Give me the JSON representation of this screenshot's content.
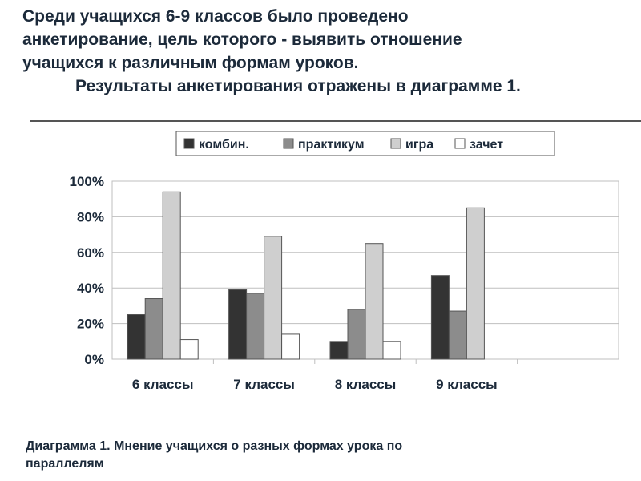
{
  "header": {
    "line1": "Среди учащихся 6-9 классов было проведено",
    "line2": "анкетирование, цель которого - выявить отношение",
    "line3": "учащихся к различным формам уроков.",
    "line4": "Результаты анкетирования отражены в диаграмме 1."
  },
  "caption": {
    "line1": "Диаграмма 1. Мнение учащихся о разных формах урока по",
    "line2": "параллелям"
  },
  "colors": {
    "комбин.": "#333333",
    "практикум": "#8c8c8c",
    "игра": "#cfcfcf",
    "зачет": "#ffffff",
    "grid": "#bfbfbf",
    "text": "#1c2a3a"
  },
  "chart_data": {
    "type": "bar",
    "categories": [
      "6 классы",
      "7 классы",
      "8 классы",
      "9 классы"
    ],
    "series": [
      {
        "name": "комбин.",
        "values": [
          25,
          39,
          10,
          47
        ]
      },
      {
        "name": "практикум",
        "values": [
          34,
          37,
          28,
          27
        ]
      },
      {
        "name": "игра",
        "values": [
          94,
          69,
          65,
          85
        ]
      },
      {
        "name": "зачет",
        "values": [
          11,
          14,
          10,
          0
        ]
      }
    ],
    "ylim": [
      0,
      100
    ],
    "yticks": [
      "0%",
      "20%",
      "40%",
      "60%",
      "80%",
      "100%"
    ],
    "grid": true,
    "legend_position": "top"
  }
}
